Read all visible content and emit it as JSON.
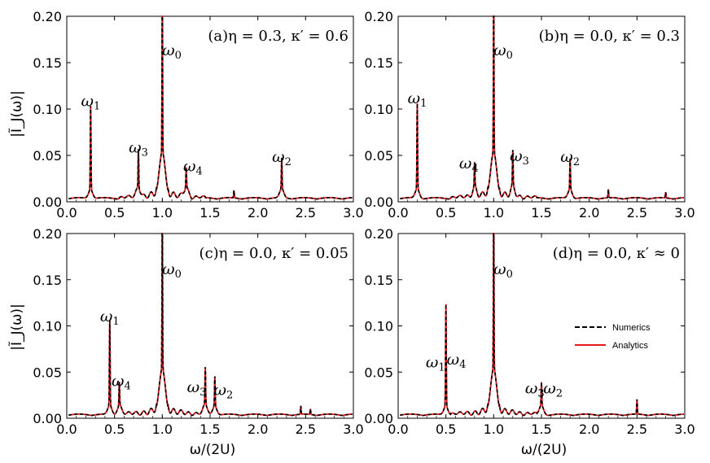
{
  "legend": {
    "numerics": "Numerics",
    "analytics": "Analytics",
    "numerics_color": "#000000",
    "analytics_color": "#e41a1c"
  },
  "x_ticks": [
    "0.0",
    "0.5",
    "1.0",
    "1.5",
    "2.0",
    "2.5",
    "3.0"
  ],
  "y_ticks": [
    "0.00",
    "0.05",
    "0.10",
    "0.15",
    "0.20"
  ],
  "ylabel": "|Ĩ_J(ω)|",
  "xlabel": "ω/(2U)",
  "chart_data": [
    {
      "type": "line",
      "panel": "a",
      "title": "(a)η = 0.3, κ′ = 0.6",
      "xlim": [
        0,
        3
      ],
      "ylim": [
        0,
        0.2
      ],
      "peaks": [
        {
          "label": "ω1",
          "x": 0.25,
          "y": 0.09
        },
        {
          "label": "ω0",
          "x": 1.0,
          "y": 0.2
        },
        {
          "label": "ω3",
          "x": 0.75,
          "y": 0.042
        },
        {
          "label": "ω4",
          "x": 1.25,
          "y": 0.022
        },
        {
          "label": "ω2",
          "x": 2.25,
          "y": 0.033
        },
        {
          "label": "",
          "x": 1.75,
          "y": 0.008
        }
      ],
      "annotations": [
        {
          "text": "ω",
          "sub": "1",
          "x": 0.25,
          "y": 0.103
        },
        {
          "text": "ω",
          "sub": "3",
          "x": 0.75,
          "y": 0.053
        },
        {
          "text": "ω",
          "sub": "0",
          "x": 1.1,
          "y": 0.158
        },
        {
          "text": "ω",
          "sub": "4",
          "x": 1.32,
          "y": 0.033
        },
        {
          "text": "ω",
          "sub": "2",
          "x": 2.25,
          "y": 0.043
        }
      ]
    },
    {
      "type": "line",
      "panel": "b",
      "title": "(b)η = 0.0, κ′ = 0.3",
      "xlim": [
        0,
        3
      ],
      "ylim": [
        0,
        0.2
      ],
      "peaks": [
        {
          "label": "ω1",
          "x": 0.2,
          "y": 0.092
        },
        {
          "label": "ω0",
          "x": 1.0,
          "y": 0.2
        },
        {
          "label": "ω4",
          "x": 0.8,
          "y": 0.025
        },
        {
          "label": "ω3",
          "x": 1.2,
          "y": 0.037
        },
        {
          "label": "ω2",
          "x": 1.8,
          "y": 0.033
        },
        {
          "label": "",
          "x": 2.2,
          "y": 0.009
        },
        {
          "label": "",
          "x": 2.8,
          "y": 0.006
        }
      ],
      "annotations": [
        {
          "text": "ω",
          "sub": "1",
          "x": 0.2,
          "y": 0.106
        },
        {
          "text": "ω",
          "sub": "4",
          "x": 0.74,
          "y": 0.036
        },
        {
          "text": "ω",
          "sub": "0",
          "x": 1.1,
          "y": 0.158
        },
        {
          "text": "ω",
          "sub": "3",
          "x": 1.27,
          "y": 0.044
        },
        {
          "text": "ω",
          "sub": "2",
          "x": 1.8,
          "y": 0.043
        }
      ]
    },
    {
      "type": "line",
      "panel": "c",
      "title": "(c)η = 0.0, κ′ = 0.05",
      "xlim": [
        0,
        3
      ],
      "ylim": [
        0,
        0.2
      ],
      "peaks": [
        {
          "label": "ω1",
          "x": 0.45,
          "y": 0.092
        },
        {
          "label": "ω0",
          "x": 1.0,
          "y": 0.2
        },
        {
          "label": "ω4",
          "x": 0.55,
          "y": 0.025
        },
        {
          "label": "ω3",
          "x": 1.45,
          "y": 0.04
        },
        {
          "label": "ω2",
          "x": 1.55,
          "y": 0.032
        },
        {
          "label": "",
          "x": 2.45,
          "y": 0.009
        },
        {
          "label": "",
          "x": 2.55,
          "y": 0.006
        }
      ],
      "annotations": [
        {
          "text": "ω",
          "sub": "1",
          "x": 0.45,
          "y": 0.105
        },
        {
          "text": "ω",
          "sub": "4",
          "x": 0.57,
          "y": 0.035
        },
        {
          "text": "ω",
          "sub": "0",
          "x": 1.1,
          "y": 0.156
        },
        {
          "text": "ω",
          "sub": "3",
          "x": 1.36,
          "y": 0.028
        },
        {
          "text": "ω",
          "sub": "2",
          "x": 1.64,
          "y": 0.025
        }
      ]
    },
    {
      "type": "line",
      "panel": "d",
      "title": "(d)η = 0.0, κ′ ≈ 0",
      "xlim": [
        0,
        3
      ],
      "ylim": [
        0,
        0.2
      ],
      "peaks": [
        {
          "label": "ω1, ω4",
          "x": 0.5,
          "y": 0.11
        },
        {
          "label": "ω0",
          "x": 1.0,
          "y": 0.2
        },
        {
          "label": "ω3, ω2",
          "x": 1.5,
          "y": 0.025
        },
        {
          "label": "",
          "x": 2.5,
          "y": 0.016
        }
      ],
      "annotations": [
        {
          "text": "ω",
          "sub": "1",
          "x": 0.39,
          "y": 0.055
        },
        {
          "text": "ω",
          "sub": "4",
          "x": 0.61,
          "y": 0.058
        },
        {
          "text": "ω",
          "sub": "0",
          "x": 1.1,
          "y": 0.156
        },
        {
          "text": "ω",
          "sub": "3",
          "x": 1.43,
          "y": 0.027
        },
        {
          "text": "ω",
          "sub": "2",
          "x": 1.62,
          "y": 0.027
        }
      ]
    }
  ]
}
